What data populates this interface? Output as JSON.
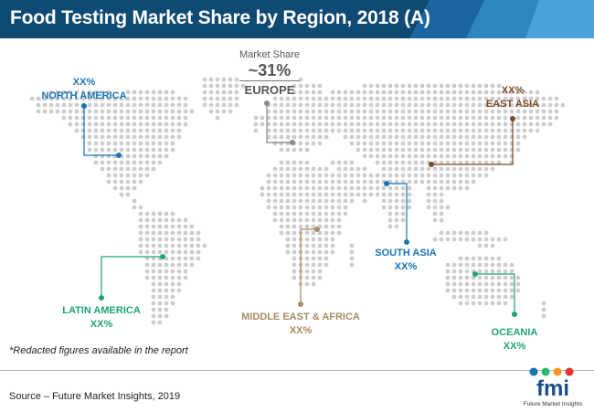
{
  "title": "Food Testing Market Share by Region, 2018 (A)",
  "colors": {
    "header_dark": "#0e4a72",
    "header_light": "#2f86bf",
    "map_dot": "#cdcdcd",
    "north_america": "#1a74b4",
    "europe": "#8a8a8a",
    "east_asia": "#7a4a2c",
    "south_asia": "#1a74b4",
    "latin_america": "#1fa37a",
    "middle_east_africa": "#a98b63",
    "oceania": "#1fa37a"
  },
  "regions": {
    "europe": {
      "caption": "Market Share",
      "value": "~31%",
      "name": "EUROPE"
    },
    "north_america": {
      "value": "XX%",
      "name": "NORTH AMERICA"
    },
    "east_asia": {
      "value": "XX%",
      "name": "EAST ASIA"
    },
    "south_asia": {
      "name": "SOUTH ASIA",
      "value": "XX%"
    },
    "latin_america": {
      "name": "LATIN AMERICA",
      "value": "XX%"
    },
    "middle_east_africa": {
      "name": "MIDDLE EAST & AFRICA",
      "value": "XX%"
    },
    "oceania": {
      "name": "OCEANIA",
      "value": "XX%"
    }
  },
  "note": "*Redacted figures available in the report",
  "source": "Source – Future Market Insights, 2019",
  "logo": {
    "text": "fmi",
    "tagline": "Future Market Insights"
  }
}
